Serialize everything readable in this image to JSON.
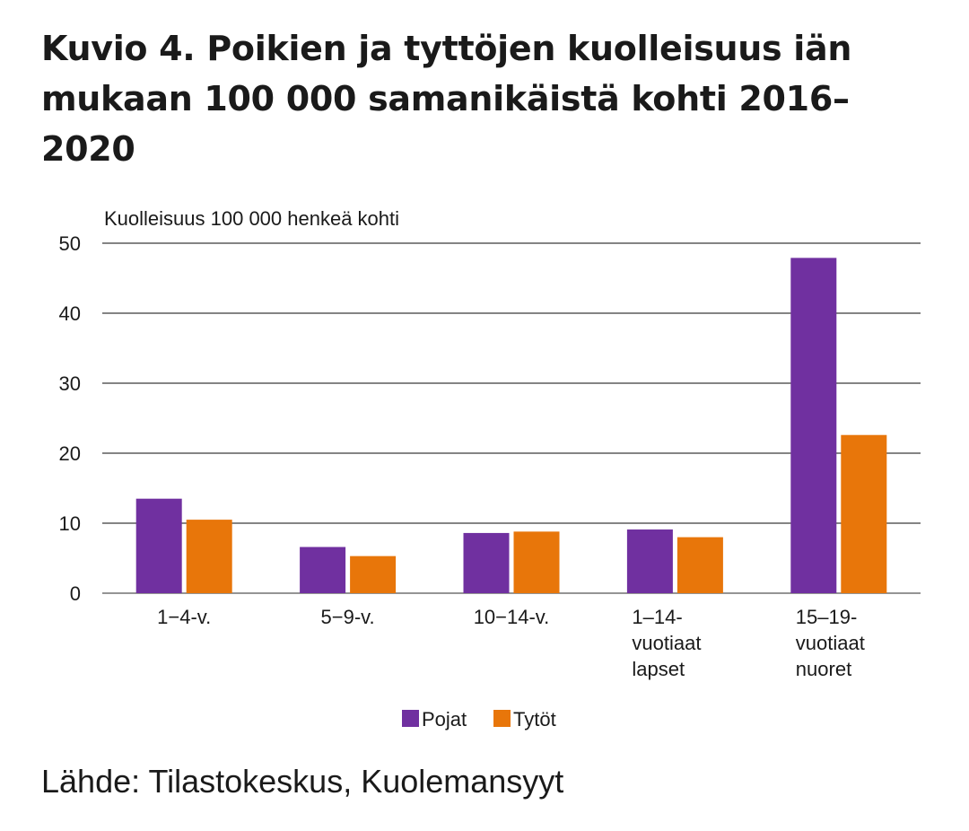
{
  "chart_data": {
    "type": "bar",
    "title": "Kuvio 4. Poikien ja tyttöjen kuolleisuus iän mukaan 100 000 samanikäistä kohti 2016–2020",
    "ylabel": "Kuolleisuus 100 000 henkeä kohti",
    "xlabel": "",
    "ylim": [
      0,
      50
    ],
    "yticks": [
      0,
      10,
      20,
      30,
      40,
      50
    ],
    "grid": true,
    "legend_position": "bottom",
    "categories": [
      [
        "1−4-v."
      ],
      [
        "5−9-v."
      ],
      [
        "10−14-v."
      ],
      [
        "1–14-",
        "vuotiaat",
        "lapset"
      ],
      [
        "15–19-",
        "vuotiaat",
        "nuoret"
      ]
    ],
    "series": [
      {
        "name": "Pojat",
        "color": "#7030a0",
        "values": [
          13.5,
          6.6,
          8.6,
          9.1,
          47.9
        ]
      },
      {
        "name": "Tytöt",
        "color": "#e8760a",
        "values": [
          10.5,
          5.3,
          8.8,
          8.0,
          22.6
        ]
      }
    ]
  },
  "source": "Lähde: Tilastokeskus, Kuolemansyyt"
}
